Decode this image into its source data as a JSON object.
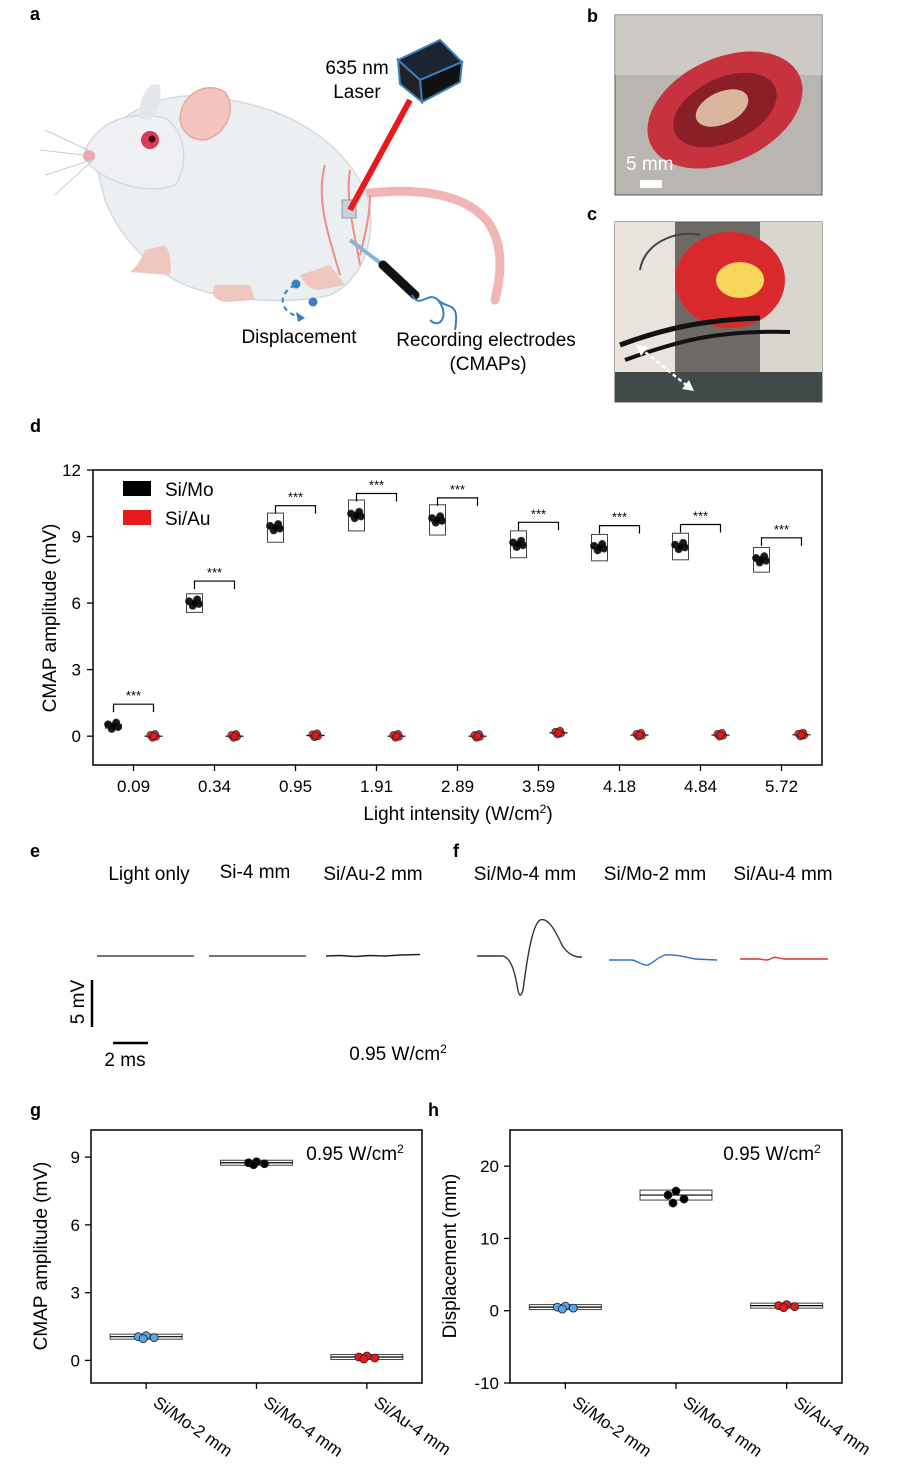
{
  "panels": {
    "a": "a",
    "b": "b",
    "c": "c",
    "d": "d",
    "e": "e",
    "f": "f",
    "g": "g",
    "h": "h"
  },
  "panel_a": {
    "laser_line1": "635 nm",
    "laser_line2": "Laser",
    "displacement": "Displacement",
    "recording_line1": "Recording electrodes",
    "recording_line2": "(CMAPs)"
  },
  "panel_b": {
    "scale_label": "5 mm"
  },
  "colors": {
    "si_mo": "#000000",
    "si_au": "#e8191c",
    "si_mo_2mm": "#5aa6e6",
    "laser": "#e8191c",
    "blue_trace": "#2f6fd0",
    "red_trace": "#e0302a"
  },
  "chart_data": [
    {
      "panel": "d",
      "type": "scatter",
      "ylabel": "CMAP amplitude (mV)",
      "xlabel_main": "Light intensity (W/cm",
      "xlabel_sup": "2",
      "xlabel_tail": ")",
      "ylim": [
        -1.3,
        12
      ],
      "yticks": [
        "0",
        "3",
        "6",
        "9",
        "12"
      ],
      "categories": [
        "0.09",
        "0.34",
        "0.95",
        "1.91",
        "2.89",
        "3.59",
        "4.18",
        "4.84",
        "5.72"
      ],
      "significance": [
        "***",
        "***",
        "***",
        "***",
        "***",
        "***",
        "***",
        "***",
        "***"
      ],
      "legend": [
        "Si/Mo",
        "Si/Au"
      ],
      "legend_position": "top-left",
      "series": [
        {
          "name": "Si/Mo",
          "values": [
            0.45,
            6.0,
            9.4,
            9.95,
            9.75,
            8.65,
            8.5,
            8.55,
            7.95
          ]
        },
        {
          "name": "Si/Au",
          "values": [
            0.0,
            0.0,
            0.03,
            0.0,
            0.0,
            0.15,
            0.05,
            0.05,
            0.06
          ]
        }
      ]
    },
    {
      "panel": "g",
      "type": "scatter",
      "ylabel": "CMAP amplitude (mV)",
      "ylim": [
        -1,
        10.2
      ],
      "yticks": [
        "0",
        "3",
        "6",
        "9"
      ],
      "annotation_main": "0.95 W/cm",
      "annotation_sup": "2",
      "categories": [
        "Si/Mo-2 mm",
        "Si/Mo-4 mm",
        "Si/Au-4 mm"
      ],
      "values": [
        1.05,
        8.75,
        0.15
      ]
    },
    {
      "panel": "h",
      "type": "scatter",
      "ylabel": "Displacement (mm)",
      "ylim": [
        -10,
        25
      ],
      "yticks": [
        "-10",
        "0",
        "10",
        "20"
      ],
      "annotation_main": "0.95 W/cm",
      "annotation_sup": "2",
      "categories": [
        "Si/Mo-2 mm",
        "Si/Mo-4 mm",
        "Si/Au-4 mm"
      ],
      "values": [
        0.5,
        16.0,
        0.7
      ]
    }
  ],
  "panel_e": {
    "labels": [
      "Light only",
      "Si-4 mm",
      "Si/Au-2 mm"
    ],
    "scale_v": "5 mV",
    "scale_t": "2 ms",
    "intensity_main": "0.95 W/cm",
    "intensity_sup": "2"
  },
  "panel_f": {
    "labels": [
      "Si/Mo-4 mm",
      "Si/Mo-2 mm",
      "Si/Au-4 mm"
    ]
  }
}
